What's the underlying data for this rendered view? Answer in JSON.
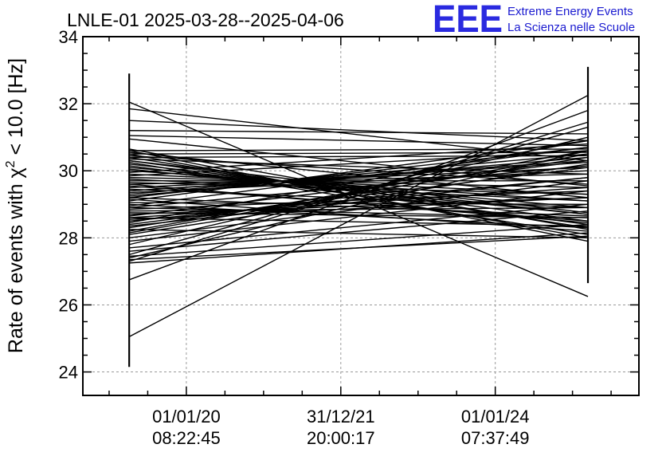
{
  "header": {
    "title": "LNLE-01 2025-03-28--2025-04-06",
    "logo_mark": "EEE",
    "logo_line1": "Extreme Energy Events",
    "logo_line2": "La Scienza nelle Scuole",
    "logo_color": "#2a2ae0"
  },
  "chart_data": {
    "type": "line",
    "title": "LNLE-01 2025-03-28--2025-04-06",
    "ylabel": "Rate of events with χ² < 10.0 [Hz]",
    "ylabel_parts": {
      "pre": "Rate of events with χ",
      "sup": "2",
      "post": " < 10.0 [Hz]"
    },
    "xlabel": "",
    "ylim": [
      23.3,
      34
    ],
    "xlim": [
      -0.67,
      2.93
    ],
    "grid": true,
    "grid_style": "dashed",
    "yticks": [
      24,
      26,
      28,
      30,
      32,
      34
    ],
    "yticks_labels": [
      "24",
      "26",
      "28",
      "30",
      "32",
      "34"
    ],
    "xticks": [
      {
        "pos": 0,
        "line1": "01/01/20",
        "line2": "08:22:45"
      },
      {
        "pos": 1,
        "line1": "31/12/21",
        "line2": "20:00:17"
      },
      {
        "pos": 2,
        "line1": "01/01/24",
        "line2": "07:37:49"
      }
    ],
    "x_left": -0.37,
    "x_right": 2.6,
    "error_bar_left": [
      24.15,
      32.9
    ],
    "error_bar_right": [
      26.65,
      33.1
    ],
    "series_color": "#000000",
    "segments": [
      [
        25.05,
        32.25
      ],
      [
        32.05,
        26.25
      ],
      [
        26.75,
        31.8
      ],
      [
        31.85,
        30.3
      ],
      [
        31.5,
        30.9
      ],
      [
        27.3,
        31.45
      ],
      [
        27.4,
        30.6
      ],
      [
        27.5,
        31.3
      ],
      [
        30.6,
        27.9
      ],
      [
        27.8,
        31.0
      ],
      [
        30.5,
        28.0
      ],
      [
        30.4,
        28.3
      ],
      [
        30.3,
        28.5
      ],
      [
        30.2,
        28.7
      ],
      [
        30.1,
        28.9
      ],
      [
        30.0,
        29.1
      ],
      [
        29.9,
        29.3
      ],
      [
        29.8,
        29.5
      ],
      [
        29.7,
        29.7
      ],
      [
        29.6,
        29.9
      ],
      [
        29.5,
        30.1
      ],
      [
        29.4,
        30.3
      ],
      [
        29.3,
        30.5
      ],
      [
        29.2,
        30.7
      ],
      [
        29.1,
        30.9
      ],
      [
        29.0,
        28.3
      ],
      [
        28.9,
        28.6
      ],
      [
        28.8,
        28.9
      ],
      [
        28.7,
        29.2
      ],
      [
        28.6,
        29.5
      ],
      [
        28.5,
        29.8
      ],
      [
        28.4,
        30.1
      ],
      [
        28.3,
        30.4
      ],
      [
        28.2,
        30.6
      ],
      [
        28.1,
        30.2
      ],
      [
        28.0,
        29.7
      ],
      [
        27.9,
        29.4
      ],
      [
        27.7,
        29.0
      ],
      [
        27.6,
        28.8
      ],
      [
        27.45,
        28.4
      ],
      [
        30.55,
        29.2
      ],
      [
        30.45,
        29.6
      ],
      [
        30.35,
        29.9
      ],
      [
        30.25,
        28.1
      ],
      [
        30.15,
        28.4
      ],
      [
        30.05,
        28.7
      ],
      [
        29.95,
        30.8
      ],
      [
        29.85,
        30.6
      ],
      [
        29.75,
        29.1
      ],
      [
        29.65,
        29.3
      ],
      [
        29.55,
        28.5
      ],
      [
        29.45,
        28.9
      ],
      [
        29.35,
        30.0
      ],
      [
        29.25,
        30.4
      ],
      [
        29.15,
        28.2
      ],
      [
        29.05,
        29.0
      ],
      [
        28.95,
        30.7
      ],
      [
        28.85,
        29.4
      ],
      [
        28.75,
        28.6
      ],
      [
        28.65,
        30.3
      ],
      [
        28.55,
        29.2
      ],
      [
        28.45,
        30.9
      ],
      [
        28.35,
        29.8
      ],
      [
        28.25,
        28.0
      ],
      [
        28.15,
        30.5
      ],
      [
        30.65,
        28.25
      ],
      [
        30.6,
        30.65
      ],
      [
        30.5,
        30.55
      ],
      [
        30.4,
        30.45
      ],
      [
        30.3,
        28.75
      ],
      [
        29.6,
        28.45
      ],
      [
        29.4,
        30.25
      ],
      [
        29.2,
        28.65
      ],
      [
        28.9,
        30.15
      ],
      [
        28.6,
        28.35
      ],
      [
        31.2,
        31.1
      ],
      [
        30.95,
        29.55
      ],
      [
        31.05,
        30.75
      ],
      [
        27.35,
        28.05
      ],
      [
        27.25,
        28.15
      ]
    ]
  }
}
